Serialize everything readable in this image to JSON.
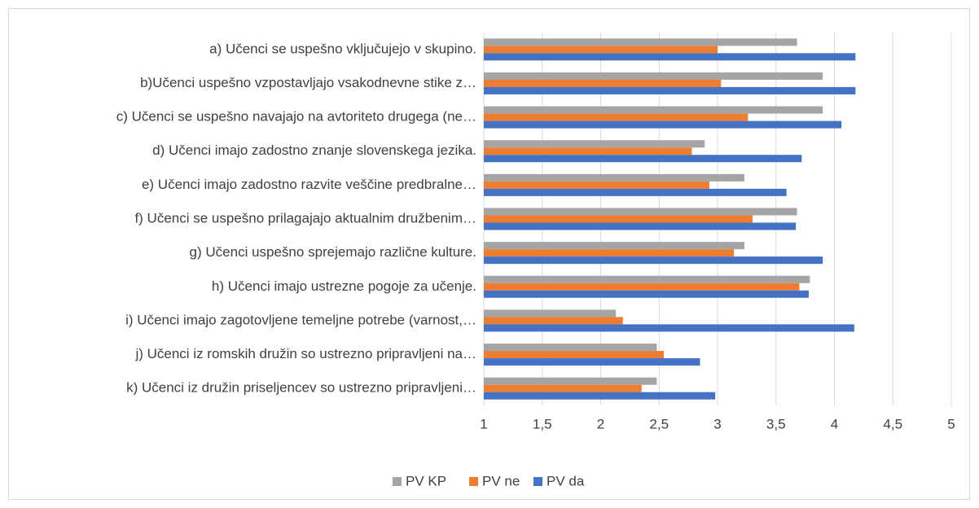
{
  "chart_data": {
    "type": "hbar",
    "categories": [
      "a) Učenci se uspešno vključujejo v skupino.",
      "b)Učenci uspešno vzpostavljajo vsakodnevne stike z…",
      "c) Učenci se uspešno navajajo na avtoriteto drugega (ne…",
      "d) Učenci imajo zadostno znanje slovenskega jezika.",
      "e) Učenci imajo zadostno razvite veščine predbralne…",
      "f) Učenci se uspešno prilagajajo aktualnim družbenim…",
      "g) Učenci uspešno sprejemajo različne kulture.",
      "h) Učenci imajo ustrezne pogoje za učenje.",
      "i) Učenci imajo zagotovljene temeljne potrebe (varnost,…",
      "j) Učenci iz romskih družin so ustrezno pripravljeni na…",
      "k) Učenci iz družin priseljencev so ustrezno pripravljeni…"
    ],
    "series": [
      {
        "name": "PV KP",
        "color": "#a5a5a5",
        "values": [
          3.68,
          3.9,
          3.9,
          2.89,
          3.23,
          3.68,
          3.23,
          3.79,
          2.13,
          2.48,
          2.48
        ]
      },
      {
        "name": "PV ne",
        "color": "#ed7d31",
        "values": [
          3.0,
          3.03,
          3.26,
          2.78,
          2.93,
          3.3,
          3.14,
          3.7,
          2.19,
          2.54,
          2.35
        ]
      },
      {
        "name": "PV da",
        "color": "#4472c4",
        "values": [
          4.18,
          4.18,
          4.06,
          3.72,
          3.59,
          3.67,
          3.9,
          3.78,
          4.17,
          2.85,
          2.98
        ]
      }
    ],
    "xlim": [
      1,
      5
    ],
    "xticks": [
      1,
      {
        "value": 1.5,
        "label": "1,5"
      },
      2,
      {
        "value": 2.5,
        "label": "2,5"
      },
      3,
      {
        "value": 3.5,
        "label": "3,5"
      },
      4,
      {
        "value": 4.5,
        "label": "4,5"
      },
      5
    ],
    "grid": true,
    "legend": "bottom"
  }
}
